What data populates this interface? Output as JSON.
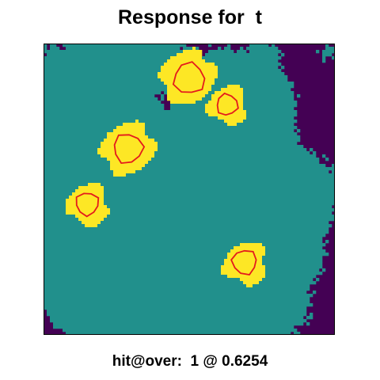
{
  "chart_data": {
    "type": "heatmap",
    "title": "Response for  t",
    "caption": "hit@over:  1 @ 0.6254",
    "xlabel": "",
    "ylabel": "",
    "grid": false,
    "legend": "none",
    "levels": [
      {
        "level": 0,
        "color": "#440154"
      },
      {
        "level": 1,
        "color": "#21908c"
      },
      {
        "level": 2,
        "color": "#fde725"
      }
    ],
    "contour_color": "#e41a1c",
    "hotspots": [
      {
        "cx": 0.5,
        "cy": 0.12,
        "r": 0.095
      },
      {
        "cx": 0.63,
        "cy": 0.21,
        "r": 0.065
      },
      {
        "cx": 0.29,
        "cy": 0.36,
        "r": 0.09
      },
      {
        "cx": 0.15,
        "cy": 0.55,
        "r": 0.07
      },
      {
        "cx": 0.69,
        "cy": 0.75,
        "r": 0.075
      }
    ]
  }
}
